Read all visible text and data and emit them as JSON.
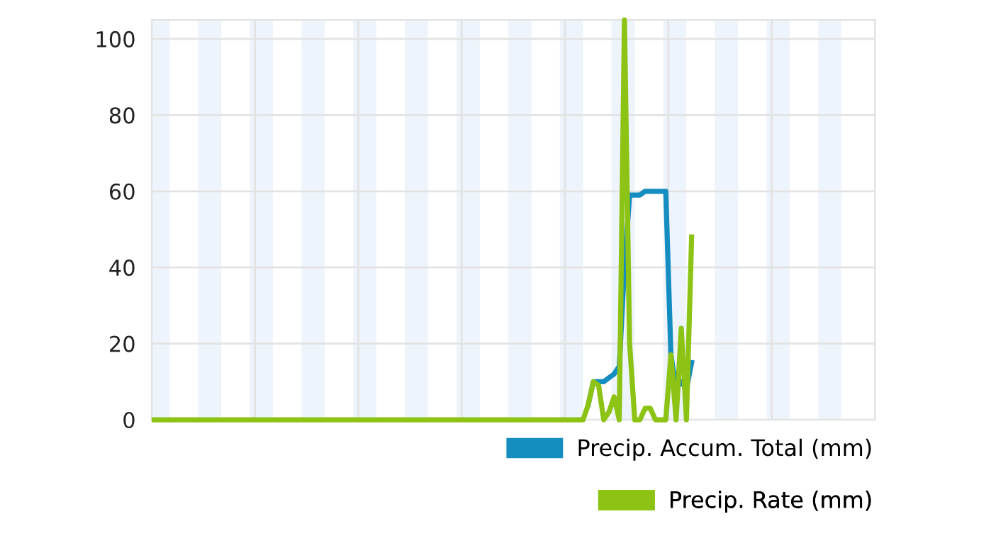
{
  "chart_data": {
    "type": "line",
    "categories": [
      null,
      null,
      null,
      null,
      null,
      null,
      null,
      null,
      null,
      null,
      null,
      null,
      null,
      null,
      null,
      null,
      null,
      null,
      null,
      null,
      null,
      null,
      null,
      null,
      null,
      null,
      null,
      null,
      null,
      null,
      null,
      null,
      null,
      null,
      null,
      null,
      null,
      null,
      null,
      null,
      null,
      null,
      null,
      null,
      null,
      null,
      null,
      null,
      null,
      null,
      null,
      null,
      null,
      null,
      null,
      null,
      null,
      null,
      null,
      null,
      null,
      null,
      null,
      null,
      null,
      null,
      null,
      null,
      null,
      null,
      null,
      null,
      null,
      null,
      null,
      null,
      null,
      null,
      null,
      null,
      null,
      null,
      null,
      null,
      null,
      null,
      null,
      null,
      null,
      null,
      null,
      null,
      null,
      null,
      null,
      null,
      null,
      null,
      null,
      null,
      null,
      null,
      null,
      null,
      null,
      null,
      null,
      null,
      null,
      null,
      null,
      null,
      null,
      null,
      null,
      null,
      null,
      null,
      null,
      null,
      null,
      null,
      null,
      null,
      null,
      null,
      null,
      null,
      null,
      null,
      null,
      null,
      null,
      null,
      null,
      null,
      null,
      null,
      null,
      null
    ],
    "series": [
      {
        "name": "Precip. Accum. Total (mm)",
        "color": "#168dc0",
        "values": [
          null,
          null,
          null,
          null,
          null,
          null,
          null,
          null,
          null,
          null,
          null,
          null,
          null,
          null,
          null,
          null,
          null,
          null,
          null,
          null,
          null,
          null,
          null,
          null,
          null,
          null,
          null,
          null,
          null,
          null,
          null,
          null,
          null,
          null,
          null,
          null,
          null,
          null,
          null,
          null,
          null,
          null,
          null,
          null,
          null,
          null,
          null,
          null,
          null,
          null,
          null,
          null,
          null,
          null,
          null,
          null,
          null,
          null,
          null,
          null,
          null,
          null,
          null,
          null,
          null,
          null,
          null,
          null,
          null,
          null,
          null,
          null,
          null,
          null,
          null,
          null,
          null,
          null,
          null,
          null,
          null,
          null,
          null,
          null,
          4,
          10,
          10,
          10,
          11,
          12,
          14,
          40,
          59,
          59,
          59,
          60,
          60,
          60,
          60,
          60,
          17,
          8,
          10,
          8,
          15,
          null,
          null,
          null,
          null,
          null,
          null,
          null,
          null,
          null,
          null,
          null,
          null,
          null,
          null,
          null,
          null,
          null,
          null,
          null,
          null,
          null,
          null,
          null,
          null,
          null,
          null,
          null,
          null,
          null,
          null,
          null,
          null,
          null,
          null,
          null
        ]
      },
      {
        "name": "Precip. Rate (mm)",
        "color": "#8cc314",
        "values": [
          0,
          0,
          0,
          0,
          0,
          0,
          0,
          0,
          0,
          0,
          0,
          0,
          0,
          0,
          0,
          0,
          0,
          0,
          0,
          0,
          0,
          0,
          0,
          0,
          0,
          0,
          0,
          0,
          0,
          0,
          0,
          0,
          0,
          0,
          0,
          0,
          0,
          0,
          0,
          0,
          0,
          0,
          0,
          0,
          0,
          0,
          0,
          0,
          0,
          0,
          0,
          0,
          0,
          0,
          0,
          0,
          0,
          0,
          0,
          0,
          0,
          0,
          0,
          0,
          0,
          0,
          0,
          0,
          0,
          0,
          0,
          0,
          0,
          0,
          0,
          0,
          0,
          0,
          0,
          0,
          0,
          0,
          0,
          0,
          4,
          10,
          9,
          0,
          2,
          6,
          0,
          105,
          20,
          0,
          0,
          3,
          3,
          0,
          0,
          0,
          17,
          0,
          24,
          0,
          48,
          null,
          null,
          null,
          null,
          null,
          null,
          null,
          null,
          null,
          null,
          null,
          null,
          null,
          null,
          null,
          null,
          null,
          null,
          null,
          null,
          null,
          null,
          null,
          null,
          null,
          null,
          null,
          null,
          null,
          null,
          null,
          null,
          null,
          null,
          null
        ]
      }
    ],
    "ylim": [
      0,
      105
    ],
    "yticks": [
      0,
      20,
      40,
      60,
      80,
      100
    ],
    "grid": true,
    "legend": "bottom right",
    "marker": "none",
    "line_style": "solid"
  }
}
